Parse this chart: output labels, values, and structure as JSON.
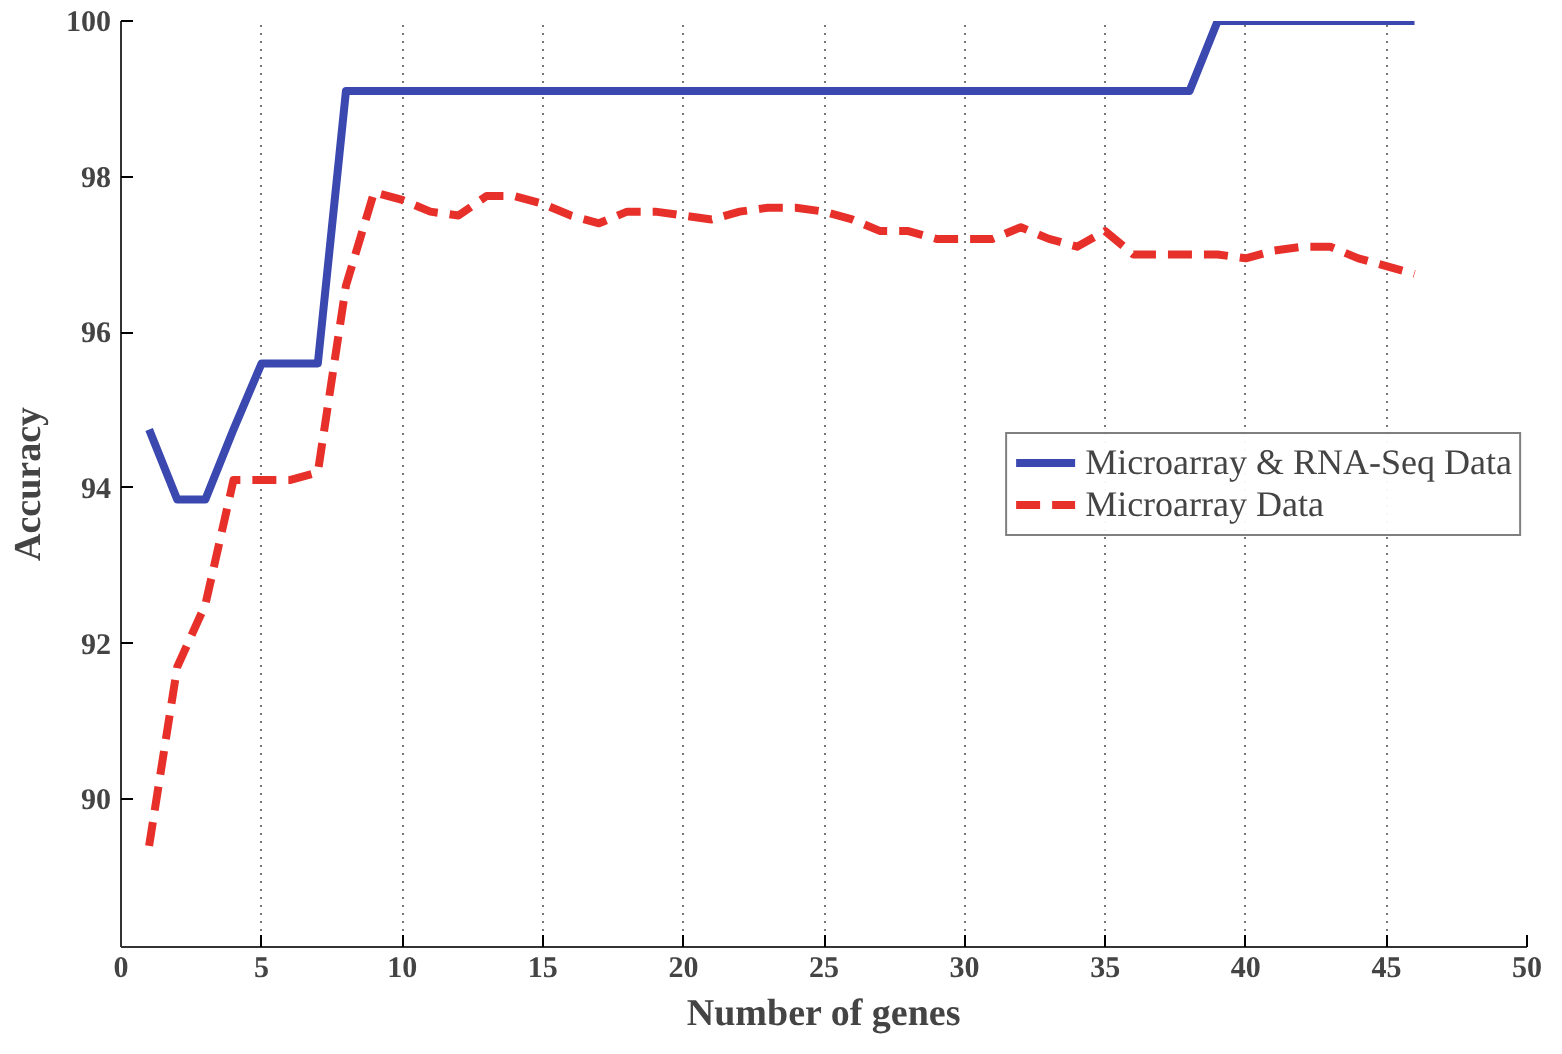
{
  "chart_data": {
    "type": "line",
    "xlabel": "Number of genes",
    "ylabel": "Accuracy",
    "x": [
      1,
      2,
      3,
      4,
      5,
      6,
      7,
      8,
      9,
      10,
      11,
      12,
      13,
      14,
      15,
      16,
      17,
      18,
      19,
      20,
      21,
      22,
      23,
      24,
      25,
      26,
      27,
      28,
      29,
      30,
      31,
      32,
      33,
      34,
      35,
      36,
      37,
      38,
      39,
      40,
      41,
      42,
      43,
      44,
      45,
      46
    ],
    "series": [
      {
        "name": "Microarray & RNA-Seq Data",
        "color": "#3a48b0",
        "line_style": "solid",
        "values": [
          94.75,
          93.85,
          93.85,
          94.75,
          95.6,
          95.6,
          95.6,
          99.1,
          99.1,
          99.1,
          99.1,
          99.1,
          99.1,
          99.1,
          99.1,
          99.1,
          99.1,
          99.1,
          99.1,
          99.1,
          99.1,
          99.1,
          99.1,
          99.1,
          99.1,
          99.1,
          99.1,
          99.1,
          99.1,
          99.1,
          99.1,
          99.1,
          99.1,
          99.1,
          99.1,
          99.1,
          99.1,
          99.1,
          100,
          100,
          100,
          100,
          100,
          100,
          100,
          100
        ]
      },
      {
        "name": "Microarray Data",
        "color": "#e8302a",
        "line_style": "dashed",
        "values": [
          89.4,
          91.7,
          92.5,
          94.1,
          94.1,
          94.1,
          94.2,
          96.6,
          97.8,
          97.7,
          97.55,
          97.5,
          97.75,
          97.75,
          97.65,
          97.5,
          97.4,
          97.55,
          97.55,
          97.5,
          97.45,
          97.55,
          97.6,
          97.6,
          97.55,
          97.45,
          97.3,
          97.3,
          97.2,
          97.2,
          97.2,
          97.35,
          97.2,
          97.1,
          97.3,
          97.0,
          97.0,
          97.0,
          97.0,
          96.95,
          97.05,
          97.1,
          97.1,
          96.95,
          96.85,
          96.75
        ]
      }
    ],
    "xlim": [
      0,
      50
    ],
    "xticks": [
      0,
      5,
      10,
      15,
      20,
      25,
      30,
      35,
      40,
      45,
      50
    ],
    "ylim": [
      88.1,
      100
    ],
    "yticks": [
      90,
      92,
      94,
      96,
      98,
      100
    ],
    "grid": "x",
    "legend": "right",
    "marker": "none"
  }
}
